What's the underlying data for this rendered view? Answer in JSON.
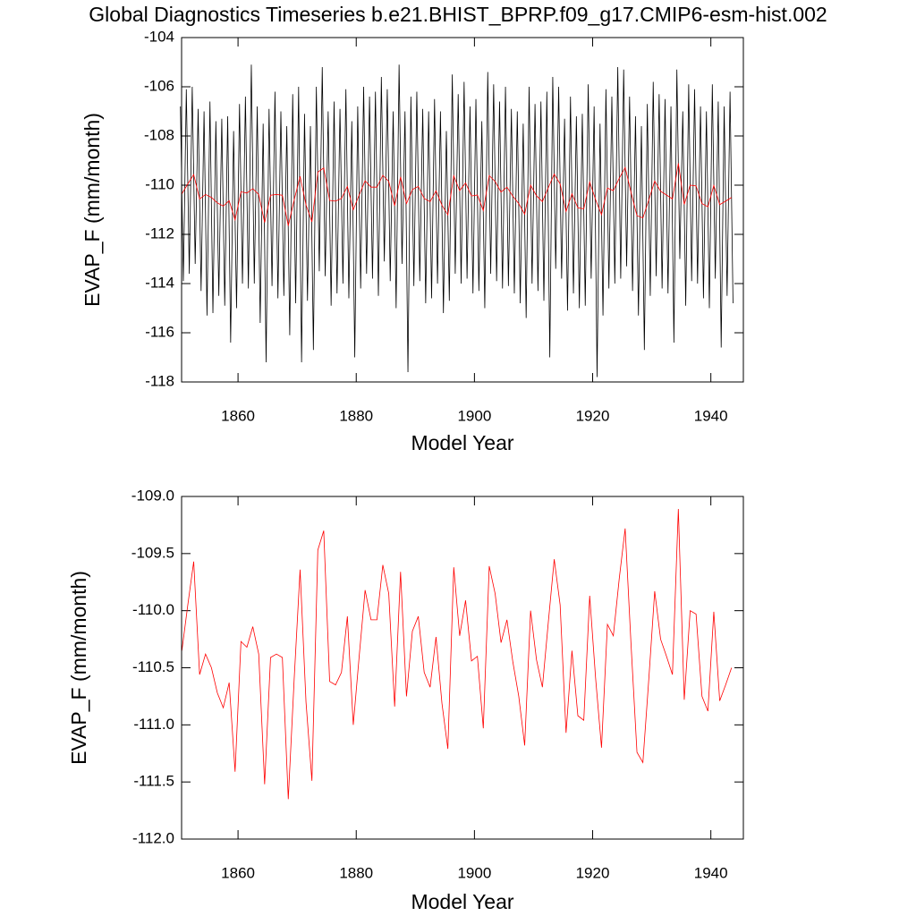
{
  "chart_data": [
    {
      "type": "line",
      "title": "Global Diagnostics Timeseries b.e21.BHIST_BPRP.f09_g17.CMIP6-esm-hist.002",
      "x_label": "Model Year",
      "y_label": "EVAP_F (mm/month)",
      "xlim": [
        1850.45,
        1945.5
      ],
      "ylim": [
        -118,
        -104
      ],
      "xticks": [
        1860,
        1880,
        1900,
        1920,
        1940
      ],
      "yticks": [
        -118,
        -116,
        -114,
        -112,
        -110,
        -108,
        -106,
        -104
      ],
      "series": [
        {
          "color": "#000000",
          "x": [
            1850.25,
            1850.75,
            1851.25,
            1851.75,
            1852.25,
            1852.75,
            1853.25,
            1853.75,
            1854.25,
            1854.75,
            1855.25,
            1855.75,
            1856.25,
            1856.75,
            1857.25,
            1857.75,
            1858.25,
            1858.75,
            1859.25,
            1859.75,
            1860.25,
            1860.75,
            1861.25,
            1861.75,
            1862.25,
            1862.75,
            1863.25,
            1863.75,
            1864.25,
            1864.75,
            1865.25,
            1865.75,
            1866.25,
            1866.75,
            1867.25,
            1867.75,
            1868.25,
            1868.75,
            1869.25,
            1869.75,
            1870.25,
            1870.75,
            1871.25,
            1871.75,
            1872.25,
            1872.75,
            1873.25,
            1873.75,
            1874.25,
            1874.75,
            1875.25,
            1875.75,
            1876.25,
            1876.75,
            1877.25,
            1877.75,
            1878.25,
            1878.75,
            1879.25,
            1879.75,
            1880.25,
            1880.75,
            1881.25,
            1881.75,
            1882.25,
            1882.75,
            1883.25,
            1883.75,
            1884.25,
            1884.75,
            1885.25,
            1885.75,
            1886.25,
            1886.75,
            1887.25,
            1887.75,
            1888.25,
            1888.75,
            1889.25,
            1889.75,
            1890.25,
            1890.75,
            1891.25,
            1891.75,
            1892.25,
            1892.75,
            1893.25,
            1893.75,
            1894.25,
            1894.75,
            1895.25,
            1895.75,
            1896.25,
            1896.75,
            1897.25,
            1897.75,
            1898.25,
            1898.75,
            1899.25,
            1899.75,
            1900.25,
            1900.75,
            1901.25,
            1901.75,
            1902.25,
            1902.75,
            1903.25,
            1903.75,
            1904.25,
            1904.75,
            1905.25,
            1905.75,
            1906.25,
            1906.75,
            1907.25,
            1907.75,
            1908.25,
            1908.75,
            1909.25,
            1909.75,
            1910.25,
            1910.75,
            1911.25,
            1911.75,
            1912.25,
            1912.75,
            1913.25,
            1913.75,
            1914.25,
            1914.75,
            1915.25,
            1915.75,
            1916.25,
            1916.75,
            1917.25,
            1917.75,
            1918.25,
            1918.75,
            1919.25,
            1919.75,
            1920.25,
            1920.75,
            1921.25,
            1921.75,
            1922.25,
            1922.75,
            1923.25,
            1923.75,
            1924.25,
            1924.75,
            1925.25,
            1925.75,
            1926.25,
            1926.75,
            1927.25,
            1927.75,
            1928.25,
            1928.75,
            1929.25,
            1929.75,
            1930.25,
            1930.75,
            1931.25,
            1931.75,
            1932.25,
            1932.75,
            1933.25,
            1933.75,
            1934.25,
            1934.75,
            1935.25,
            1935.75,
            1936.25,
            1936.75,
            1937.25,
            1937.75,
            1938.25,
            1938.75,
            1939.25,
            1939.75,
            1940.25,
            1940.75,
            1941.25,
            1941.75,
            1942.25,
            1942.75,
            1943.25,
            1943.75
          ],
          "values": [
            -106.8,
            -113.9,
            -106.1,
            -113.6,
            -106.0,
            -113.2,
            -106.9,
            -114.3,
            -107.0,
            -115.3,
            -106.6,
            -115.2,
            -107.4,
            -114.5,
            -107.3,
            -114.9,
            -107.2,
            -116.4,
            -107.8,
            -115.0,
            -106.7,
            -114.0,
            -106.4,
            -114.2,
            -105.1,
            -114.0,
            -106.8,
            -115.6,
            -107.5,
            -117.2,
            -106.9,
            -114.1,
            -106.2,
            -114.6,
            -107.0,
            -114.5,
            -107.6,
            -116.1,
            -106.3,
            -114.8,
            -106.0,
            -117.2,
            -107.1,
            -114.7,
            -107.6,
            -116.7,
            -106.0,
            -113.5,
            -105.2,
            -113.7,
            -107.0,
            -114.9,
            -106.6,
            -114.4,
            -106.9,
            -114.0,
            -106.1,
            -114.6,
            -107.4,
            -117.0,
            -106.8,
            -114.2,
            -106.0,
            -113.6,
            -106.4,
            -113.8,
            -106.2,
            -114.5,
            -105.6,
            -113.1,
            -106.1,
            -113.9,
            -107.0,
            -115.0,
            -105.1,
            -113.2,
            -107.0,
            -117.6,
            -106.4,
            -114.1,
            -106.2,
            -113.9,
            -106.9,
            -114.8,
            -107.0,
            -114.6,
            -106.5,
            -114.0,
            -107.0,
            -115.2,
            -107.8,
            -114.7,
            -105.5,
            -113.6,
            -106.3,
            -114.0,
            -105.8,
            -113.8,
            -106.8,
            -114.4,
            -106.5,
            -114.3,
            -107.4,
            -115.0,
            -105.4,
            -113.6,
            -105.9,
            -113.9,
            -106.6,
            -114.2,
            -106.0,
            -114.1,
            -106.9,
            -114.4,
            -107.0,
            -114.8,
            -107.5,
            -115.4,
            -106.0,
            -114.0,
            -106.7,
            -114.3,
            -106.6,
            -114.7,
            -106.2,
            -117.0,
            -105.6,
            -113.4,
            -106.0,
            -113.8,
            -107.3,
            -115.1,
            -106.4,
            -114.4,
            -107.2,
            -115.0,
            -107.1,
            -114.9,
            -105.9,
            -113.8,
            -106.8,
            -117.8,
            -107.5,
            -115.3,
            -106.1,
            -114.2,
            -106.4,
            -114.0,
            -105.2,
            -113.8,
            -105.3,
            -113.3,
            -106.4,
            -114.3,
            -107.2,
            -115.3,
            -107.6,
            -116.7,
            -106.7,
            -114.5,
            -105.8,
            -113.7,
            -106.3,
            -114.2,
            -106.5,
            -114.4,
            -106.8,
            -116.4,
            -105.3,
            -113.0,
            -107.0,
            -114.9,
            -105.9,
            -113.9,
            -106.1,
            -114.0,
            -106.8,
            -114.6,
            -107.0,
            -115.0,
            -105.9,
            -113.8,
            -106.6,
            -116.6,
            -106.8,
            -114.5,
            -106.2,
            -114.8
          ]
        },
        {
          "color": "#ff0000",
          "x": [
            1850.5,
            1851.5,
            1852.5,
            1853.5,
            1854.5,
            1855.5,
            1856.5,
            1857.5,
            1858.5,
            1859.5,
            1860.5,
            1861.5,
            1862.5,
            1863.5,
            1864.5,
            1865.5,
            1866.5,
            1867.5,
            1868.5,
            1869.5,
            1870.5,
            1871.5,
            1872.5,
            1873.5,
            1874.5,
            1875.5,
            1876.5,
            1877.5,
            1878.5,
            1879.5,
            1880.5,
            1881.5,
            1882.5,
            1883.5,
            1884.5,
            1885.5,
            1886.5,
            1887.5,
            1888.5,
            1889.5,
            1890.5,
            1891.5,
            1892.5,
            1893.5,
            1894.5,
            1895.5,
            1896.5,
            1897.5,
            1898.5,
            1899.5,
            1900.5,
            1901.5,
            1902.5,
            1903.5,
            1904.5,
            1905.5,
            1906.5,
            1907.5,
            1908.5,
            1909.5,
            1910.5,
            1911.5,
            1912.5,
            1913.5,
            1914.5,
            1915.5,
            1916.5,
            1917.5,
            1918.5,
            1919.5,
            1920.5,
            1921.5,
            1922.5,
            1923.5,
            1924.5,
            1925.5,
            1926.5,
            1927.5,
            1928.5,
            1929.5,
            1930.5,
            1931.5,
            1932.5,
            1933.5,
            1934.5,
            1935.5,
            1936.5,
            1937.5,
            1938.5,
            1939.5,
            1940.5,
            1941.5,
            1942.5,
            1943.5
          ],
          "values": [
            -110.35,
            -109.95,
            -109.57,
            -110.56,
            -110.38,
            -110.5,
            -110.72,
            -110.85,
            -110.63,
            -111.41,
            -110.27,
            -110.32,
            -110.14,
            -110.38,
            -111.52,
            -110.41,
            -110.38,
            -110.41,
            -111.65,
            -110.6,
            -109.64,
            -110.8,
            -111.49,
            -109.47,
            -109.3,
            -110.62,
            -110.65,
            -110.54,
            -110.05,
            -111.0,
            -110.4,
            -109.82,
            -110.08,
            -110.08,
            -109.6,
            -109.85,
            -110.84,
            -109.66,
            -110.75,
            -110.18,
            -110.05,
            -110.54,
            -110.67,
            -110.23,
            -110.81,
            -111.21,
            -109.62,
            -110.22,
            -109.91,
            -110.44,
            -110.4,
            -111.03,
            -109.61,
            -109.85,
            -110.28,
            -110.08,
            -110.45,
            -110.75,
            -111.18,
            -110.0,
            -110.43,
            -110.67,
            -110.1,
            -109.55,
            -109.95,
            -111.07,
            -110.35,
            -110.92,
            -110.96,
            -109.87,
            -110.59,
            -111.2,
            -110.12,
            -110.22,
            -109.72,
            -109.28,
            -110.3,
            -111.24,
            -111.33,
            -110.6,
            -109.83,
            -110.25,
            -110.4,
            -110.56,
            -109.11,
            -110.78,
            -110.0,
            -110.03,
            -110.75,
            -110.88,
            -110.01,
            -110.79,
            -110.65,
            -110.5
          ]
        }
      ]
    },
    {
      "type": "line",
      "x_label": "Model Year",
      "y_label": "EVAP_F (mm/month)",
      "xlim": [
        1850.45,
        1945.5
      ],
      "ylim": [
        -112,
        -109
      ],
      "xticks": [
        1860,
        1880,
        1900,
        1920,
        1940
      ],
      "yticks": [
        {
          "value": -112,
          "label": "-112.0"
        },
        -111.5,
        {
          "value": -111,
          "label": "-111.0"
        },
        -110.5,
        {
          "value": -110,
          "label": "-110.0"
        },
        -109.5,
        {
          "value": -109,
          "label": "-109.0"
        }
      ],
      "series": [
        {
          "color": "#ff0000",
          "x": [
            1850.5,
            1851.5,
            1852.5,
            1853.5,
            1854.5,
            1855.5,
            1856.5,
            1857.5,
            1858.5,
            1859.5,
            1860.5,
            1861.5,
            1862.5,
            1863.5,
            1864.5,
            1865.5,
            1866.5,
            1867.5,
            1868.5,
            1869.5,
            1870.5,
            1871.5,
            1872.5,
            1873.5,
            1874.5,
            1875.5,
            1876.5,
            1877.5,
            1878.5,
            1879.5,
            1880.5,
            1881.5,
            1882.5,
            1883.5,
            1884.5,
            1885.5,
            1886.5,
            1887.5,
            1888.5,
            1889.5,
            1890.5,
            1891.5,
            1892.5,
            1893.5,
            1894.5,
            1895.5,
            1896.5,
            1897.5,
            1898.5,
            1899.5,
            1900.5,
            1901.5,
            1902.5,
            1903.5,
            1904.5,
            1905.5,
            1906.5,
            1907.5,
            1908.5,
            1909.5,
            1910.5,
            1911.5,
            1912.5,
            1913.5,
            1914.5,
            1915.5,
            1916.5,
            1917.5,
            1918.5,
            1919.5,
            1920.5,
            1921.5,
            1922.5,
            1923.5,
            1924.5,
            1925.5,
            1926.5,
            1927.5,
            1928.5,
            1929.5,
            1930.5,
            1931.5,
            1932.5,
            1933.5,
            1934.5,
            1935.5,
            1936.5,
            1937.5,
            1938.5,
            1939.5,
            1940.5,
            1941.5,
            1942.5,
            1943.5
          ],
          "values": [
            -110.35,
            -109.95,
            -109.57,
            -110.56,
            -110.38,
            -110.5,
            -110.72,
            -110.85,
            -110.63,
            -111.41,
            -110.27,
            -110.32,
            -110.14,
            -110.38,
            -111.52,
            -110.41,
            -110.38,
            -110.41,
            -111.65,
            -110.6,
            -109.64,
            -110.8,
            -111.49,
            -109.47,
            -109.3,
            -110.62,
            -110.65,
            -110.54,
            -110.05,
            -111.0,
            -110.4,
            -109.82,
            -110.08,
            -110.08,
            -109.6,
            -109.85,
            -110.84,
            -109.66,
            -110.75,
            -110.18,
            -110.05,
            -110.54,
            -110.67,
            -110.23,
            -110.81,
            -111.21,
            -109.62,
            -110.22,
            -109.91,
            -110.44,
            -110.4,
            -111.03,
            -109.61,
            -109.85,
            -110.28,
            -110.08,
            -110.45,
            -110.75,
            -111.18,
            -110.0,
            -110.43,
            -110.67,
            -110.1,
            -109.55,
            -109.95,
            -111.07,
            -110.35,
            -110.92,
            -110.96,
            -109.87,
            -110.59,
            -111.2,
            -110.12,
            -110.22,
            -109.72,
            -109.28,
            -110.3,
            -111.24,
            -111.33,
            -110.6,
            -109.83,
            -110.25,
            -110.4,
            -110.56,
            -109.11,
            -110.78,
            -110.0,
            -110.03,
            -110.75,
            -110.88,
            -110.01,
            -110.79,
            -110.65,
            -110.5
          ]
        }
      ]
    }
  ]
}
